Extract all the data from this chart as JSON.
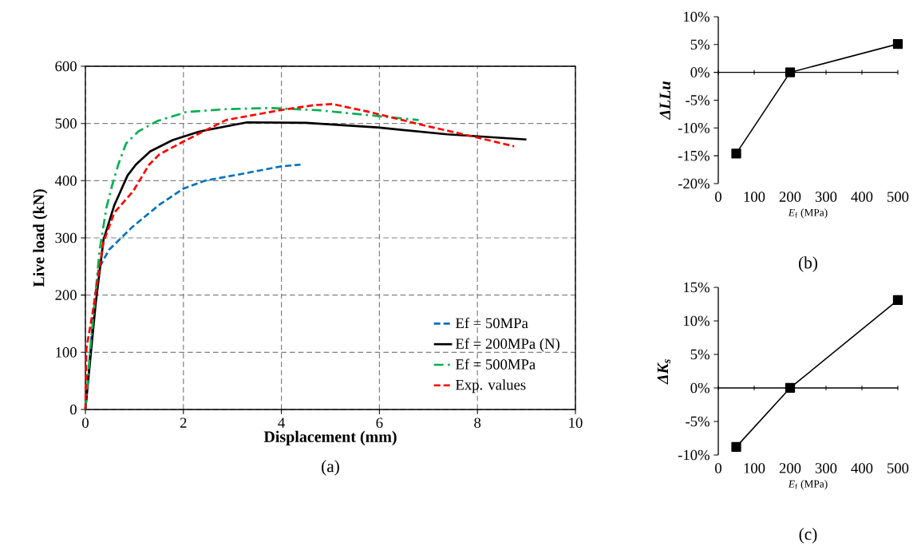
{
  "chart_data": [
    {
      "type": "line",
      "title": "(a)",
      "xlabel": "Displacement (mm)",
      "ylabel": "Live load (kN)",
      "xlim": [
        0,
        10
      ],
      "ylim": [
        0,
        600
      ],
      "xticks": [
        0,
        2,
        4,
        6,
        8,
        10
      ],
      "yticks": [
        0,
        100,
        200,
        300,
        400,
        500,
        600
      ],
      "grid": true,
      "legend": "bottom right",
      "series": [
        {
          "name": "Ef = 50MPa",
          "color": "#0070c0",
          "line_style": "dashed",
          "x": [
            0,
            0.18,
            0.27,
            0.48,
            0.97,
            1.51,
            2.0,
            2.44,
            3.14,
            4.0,
            4.39
          ],
          "values": [
            0,
            185,
            246,
            279,
            320,
            358,
            386,
            400,
            411,
            425,
            428
          ]
        },
        {
          "name": "Ef = 200MPa (N)",
          "color": "#000000",
          "line_style": "solid",
          "x": [
            0,
            0.21,
            0.37,
            0.59,
            0.86,
            1.03,
            1.32,
            1.78,
            2.33,
            3.3,
            4.5,
            5.96,
            7.38,
            9.0
          ],
          "values": [
            0,
            185,
            297,
            357,
            409,
            428,
            451,
            471,
            486,
            502,
            501,
            493,
            481,
            472
          ]
        },
        {
          "name": "Ef = 500MPa",
          "color": "#00b050",
          "line_style": "dashdot",
          "x": [
            0,
            0.1,
            0.29,
            0.43,
            0.54,
            0.67,
            0.83,
            1.08,
            1.46,
            2.06,
            2.87,
            3.79,
            4.77,
            5.96,
            6.45,
            6.8
          ],
          "values": [
            0,
            106,
            279,
            353,
            390,
            428,
            465,
            486,
            504,
            520,
            525,
            527,
            523,
            513,
            509,
            506
          ]
        },
        {
          "name": "Exp. values",
          "color": "#ff0000",
          "line_style": "dashed",
          "x": [
            0,
            0.02,
            0.16,
            0.37,
            0.59,
            0.97,
            1.3,
            1.51,
            2.06,
            2.87,
            3.96,
            4.66,
            5.04,
            5.75,
            6.89,
            7.97,
            8.75
          ],
          "values": [
            0,
            106,
            176,
            293,
            344,
            381,
            428,
            446,
            471,
            506,
            523,
            532,
            534,
            521,
            497,
            476,
            460
          ]
        }
      ]
    },
    {
      "type": "line",
      "title": "(b)",
      "xlabel": "*E*$_{f}$ (MPa)",
      "ylabel": "ΔLLu",
      "xlim": [
        0,
        500
      ],
      "ylim": [
        -20,
        10
      ],
      "xticks": [
        0,
        100,
        200,
        300,
        400,
        500
      ],
      "yticks": [
        {
          "value": -20,
          "label": "-20%"
        },
        {
          "value": -15,
          "label": "-15%"
        },
        {
          "value": -10,
          "label": "-10%"
        },
        {
          "value": -5,
          "label": "-5%"
        },
        {
          "value": 0,
          "label": "0%"
        },
        {
          "value": 5,
          "label": "5%"
        },
        {
          "value": 10,
          "label": "10%"
        }
      ],
      "marker": "square",
      "series": [
        {
          "color": "#000000",
          "x": [
            50,
            200,
            500
          ],
          "values": [
            -14.6,
            0,
            5.1
          ]
        }
      ]
    },
    {
      "type": "line",
      "title": "(c)",
      "xlabel": "*E*$_{f}$ (MPa)",
      "ylabel": "ΔK$_{s}$",
      "xlim": [
        0,
        500
      ],
      "ylim": [
        -10,
        15
      ],
      "xticks": [
        0,
        100,
        200,
        300,
        400,
        500
      ],
      "yticks": [
        {
          "value": -10,
          "label": "-10%"
        },
        {
          "value": -5,
          "label": "-5%"
        },
        {
          "value": 0,
          "label": "0%"
        },
        {
          "value": 5,
          "label": "5%"
        },
        {
          "value": 10,
          "label": "10%"
        },
        {
          "value": 15,
          "label": "15%"
        }
      ],
      "marker": "square",
      "series": [
        {
          "color": "#000000",
          "x": [
            50,
            200,
            500
          ],
          "values": [
            -8.8,
            0,
            13.1
          ]
        }
      ]
    }
  ]
}
